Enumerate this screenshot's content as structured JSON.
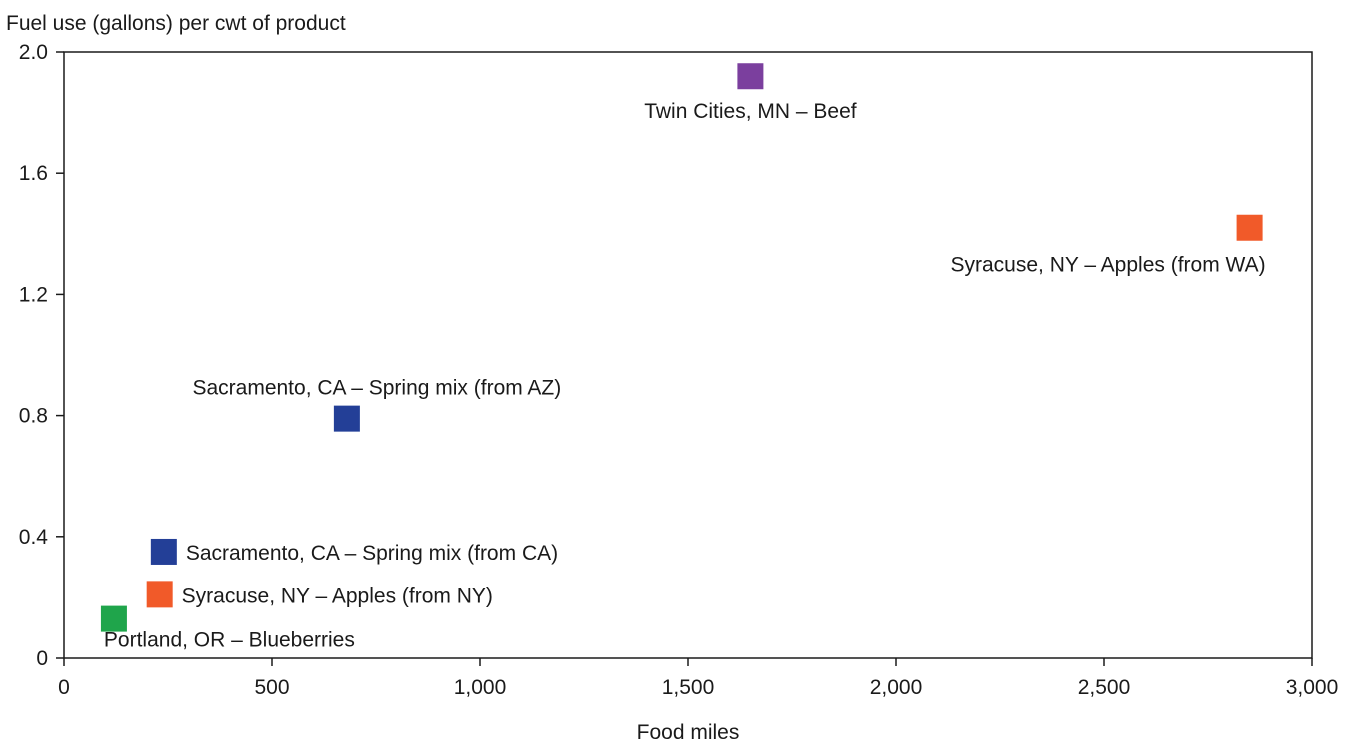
{
  "chart_data": {
    "type": "scatter",
    "title": "",
    "ylabel": "Fuel use (gallons) per cwt of product",
    "xlabel": "Food miles",
    "xlim": [
      0,
      3000
    ],
    "ylim": [
      0,
      2.0
    ],
    "x_ticks": [
      0,
      500,
      1000,
      1500,
      2000,
      2500,
      3000
    ],
    "x_tick_labels": [
      "0",
      "500",
      "1,000",
      "1,500",
      "2,000",
      "2,500",
      "3,000"
    ],
    "y_ticks": [
      0,
      0.4,
      0.8,
      1.2,
      1.6,
      2.0
    ],
    "y_tick_labels": [
      "0",
      "0.4",
      "0.8",
      "1.2",
      "1.6",
      "2.0"
    ],
    "grid": false,
    "legend": "none",
    "points": [
      {
        "label": "Twin Cities, MN – Beef",
        "x": 1650,
        "y": 1.92,
        "color": "#7b3f9e",
        "label_pos": "below"
      },
      {
        "label": "Syracuse, NY – Apples (from WA)",
        "x": 2850,
        "y": 1.42,
        "color": "#f15a29",
        "label_pos": "below-left"
      },
      {
        "label": "Sacramento, CA – Spring mix (from AZ)",
        "x": 680,
        "y": 0.79,
        "color": "#233f97",
        "label_pos": "above"
      },
      {
        "label": "Sacramento, CA – Spring mix (from CA)",
        "x": 240,
        "y": 0.35,
        "color": "#233f97",
        "label_pos": "right"
      },
      {
        "label": "Syracuse, NY – Apples (from NY)",
        "x": 230,
        "y": 0.21,
        "color": "#f15a29",
        "label_pos": "right"
      },
      {
        "label": "Portland, OR – Blueberries",
        "x": 120,
        "y": 0.13,
        "color": "#1fa54b",
        "label_pos": "below-right"
      }
    ]
  }
}
